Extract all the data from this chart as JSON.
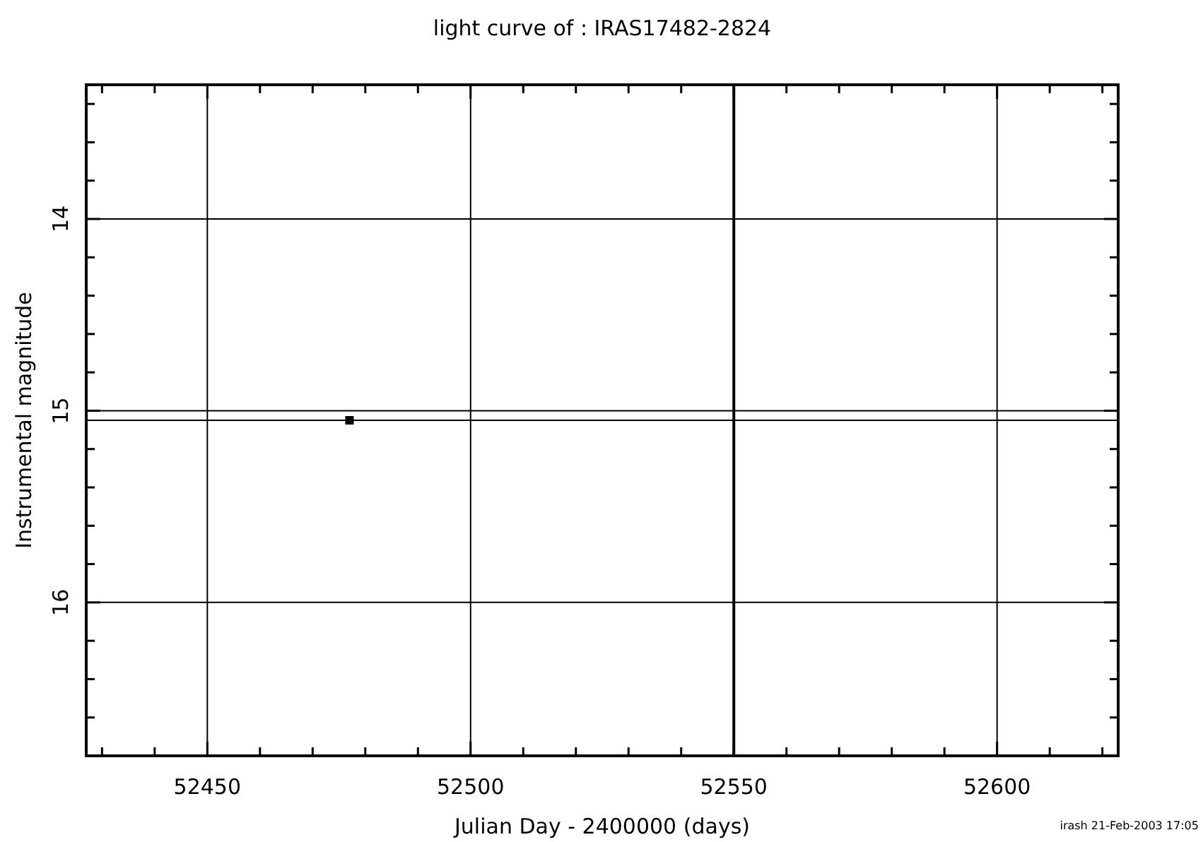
{
  "chart_data": {
    "type": "scatter",
    "title": "light curve of : IRAS17482-2824",
    "xlabel": "Julian Day - 2400000 (days)",
    "ylabel": "Instrumental magnitude",
    "x": [
      52477
    ],
    "values": [
      15.05
    ],
    "color": "#000000",
    "marker": "square",
    "xlim": [
      52427,
      52623
    ],
    "ylim": [
      16.8,
      13.3
    ],
    "xticks": [
      {
        "value": 52430,
        "label": null
      },
      {
        "value": 52440,
        "label": null
      },
      52450,
      {
        "value": 52460,
        "label": null
      },
      {
        "value": 52470,
        "label": null
      },
      {
        "value": 52480,
        "label": null
      },
      {
        "value": 52490,
        "label": null
      },
      52500,
      {
        "value": 52510,
        "label": null
      },
      {
        "value": 52520,
        "label": null
      },
      {
        "value": 52530,
        "label": null
      },
      {
        "value": 52540,
        "label": null
      },
      52550,
      {
        "value": 52560,
        "label": null
      },
      {
        "value": 52570,
        "label": null
      },
      {
        "value": 52580,
        "label": null
      },
      {
        "value": 52590,
        "label": null
      },
      52600,
      {
        "value": 52610,
        "label": null
      },
      {
        "value": 52620,
        "label": null
      }
    ],
    "yticks": [
      {
        "value": 13.4,
        "label": null
      },
      {
        "value": 13.6,
        "label": null
      },
      {
        "value": 13.8,
        "label": null
      },
      14,
      {
        "value": 14.2,
        "label": null
      },
      {
        "value": 14.4,
        "label": null
      },
      {
        "value": 14.6,
        "label": null
      },
      {
        "value": 14.8,
        "label": null
      },
      15,
      {
        "value": 15.2,
        "label": null
      },
      {
        "value": 15.4,
        "label": null
      },
      {
        "value": 15.6,
        "label": null
      },
      {
        "value": 15.8,
        "label": null
      },
      16,
      {
        "value": 16.2,
        "label": null
      },
      {
        "value": 16.4,
        "label": null
      },
      {
        "value": 16.6,
        "label": null
      }
    ],
    "grid": true,
    "ref_lines": [
      {
        "axis": "y",
        "value": 15.05
      },
      {
        "axis": "x",
        "value": 52550
      }
    ],
    "annotations": [
      "irash 21-Feb-2003 17:05"
    ]
  }
}
